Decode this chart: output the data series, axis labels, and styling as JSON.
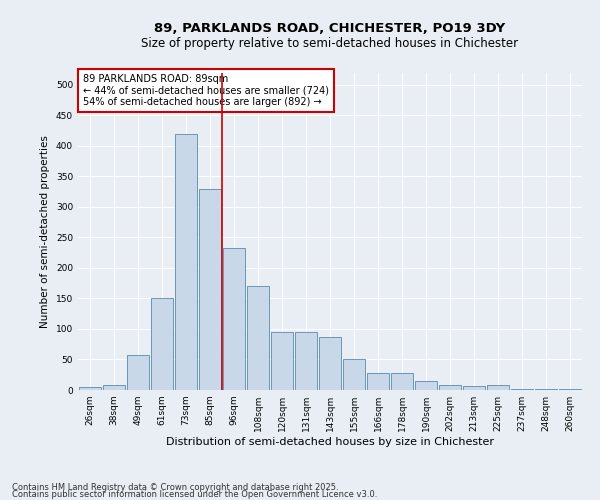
{
  "title": "89, PARKLANDS ROAD, CHICHESTER, PO19 3DY",
  "subtitle": "Size of property relative to semi-detached houses in Chichester",
  "xlabel": "Distribution of semi-detached houses by size in Chichester",
  "ylabel": "Number of semi-detached properties",
  "footnote1": "Contains HM Land Registry data © Crown copyright and database right 2025.",
  "footnote2": "Contains public sector information licensed under the Open Government Licence v3.0.",
  "bar_labels": [
    "26sqm",
    "38sqm",
    "49sqm",
    "61sqm",
    "73sqm",
    "85sqm",
    "96sqm",
    "108sqm",
    "120sqm",
    "131sqm",
    "143sqm",
    "155sqm",
    "166sqm",
    "178sqm",
    "190sqm",
    "202sqm",
    "213sqm",
    "225sqm",
    "237sqm",
    "248sqm",
    "260sqm"
  ],
  "bar_values": [
    5,
    8,
    57,
    150,
    420,
    330,
    232,
    170,
    95,
    95,
    87,
    50,
    28,
    28,
    15,
    8,
    7,
    8,
    2,
    2,
    2
  ],
  "bar_color": "#c8d8e8",
  "bar_edge_color": "#5a8ab0",
  "vline_index": 5.5,
  "vline_color": "#cc0000",
  "annotation_text": "89 PARKLANDS ROAD: 89sqm\n← 44% of semi-detached houses are smaller (724)\n54% of semi-detached houses are larger (892) →",
  "annotation_box_color": "#ffffff",
  "annotation_box_edge": "#cc0000",
  "ylim": [
    0,
    520
  ],
  "yticks": [
    0,
    50,
    100,
    150,
    200,
    250,
    300,
    350,
    400,
    450,
    500
  ],
  "background_color": "#e8eef4",
  "grid_color": "#ffffff",
  "title_fontsize": 9.5,
  "subtitle_fontsize": 8.5,
  "xlabel_fontsize": 8,
  "ylabel_fontsize": 7.5,
  "tick_fontsize": 6.5,
  "annot_fontsize": 7,
  "footnote_fontsize": 6
}
